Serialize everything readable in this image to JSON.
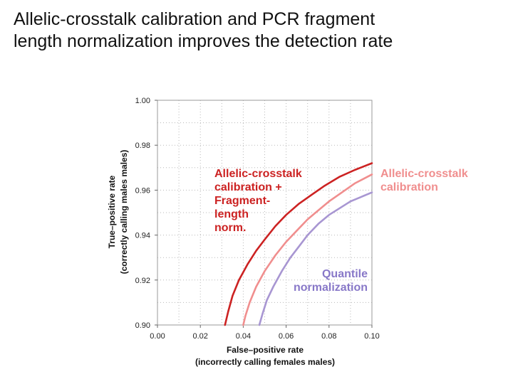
{
  "slide": {
    "title_line1": "Allelic-crosstalk calibration and PCR fragment",
    "title_line2": "length normalization improves the detection rate"
  },
  "chart_data": {
    "type": "line",
    "xlabel_line1": "False–positive rate",
    "xlabel_line2": "(incorrectly calling females males)",
    "ylabel_line1": "True–positive rate",
    "ylabel_line2": "(correctly calling males males)",
    "xlim": [
      0.0,
      0.1
    ],
    "ylim": [
      0.9,
      1.0
    ],
    "x_ticks": [
      0.0,
      0.02,
      0.04,
      0.06,
      0.08,
      0.1
    ],
    "x_tick_labels": [
      "0.00",
      "0.02",
      "0.04",
      "0.06",
      "0.08",
      "0.10"
    ],
    "y_ticks": [
      0.9,
      0.92,
      0.94,
      0.96,
      0.98,
      1.0
    ],
    "y_tick_labels": [
      "0.90",
      "0.92",
      "0.94",
      "0.96",
      "0.98",
      "1.00"
    ],
    "grid": true,
    "series": [
      {
        "name": "Allelic-crosstalk calibration + Fragment-length norm.",
        "label_line1": "Allelic-crosstalk",
        "label_line2": "calibration +",
        "label_line3": "Fragment-",
        "label_line4": "length",
        "label_line5": "norm.",
        "color": "#cc2222",
        "x": [
          0.0315,
          0.033,
          0.035,
          0.038,
          0.042,
          0.046,
          0.05,
          0.055,
          0.06,
          0.066,
          0.072,
          0.078,
          0.085,
          0.092,
          0.1
        ],
        "y": [
          0.9,
          0.906,
          0.913,
          0.92,
          0.927,
          0.933,
          0.938,
          0.944,
          0.949,
          0.954,
          0.958,
          0.962,
          0.966,
          0.969,
          0.972
        ]
      },
      {
        "name": "Allelic-crosstalk calibration",
        "label_line1": "Allelic-crosstalk",
        "label_line2": "calibration",
        "color": "#f08e8e",
        "x": [
          0.04,
          0.041,
          0.043,
          0.046,
          0.05,
          0.055,
          0.06,
          0.065,
          0.07,
          0.075,
          0.08,
          0.086,
          0.092,
          0.1
        ],
        "y": [
          0.9,
          0.904,
          0.91,
          0.917,
          0.924,
          0.931,
          0.937,
          0.942,
          0.947,
          0.951,
          0.955,
          0.959,
          0.963,
          0.967
        ]
      },
      {
        "name": "Quantile normalization",
        "label_line1": "Quantile",
        "label_line2": "normalization",
        "color": "#a896d2",
        "x": [
          0.0475,
          0.049,
          0.051,
          0.054,
          0.058,
          0.062,
          0.066,
          0.07,
          0.075,
          0.08,
          0.085,
          0.09,
          0.095,
          0.1
        ],
        "y": [
          0.9,
          0.905,
          0.911,
          0.917,
          0.924,
          0.93,
          0.935,
          0.94,
          0.945,
          0.949,
          0.952,
          0.955,
          0.957,
          0.959
        ]
      }
    ]
  }
}
